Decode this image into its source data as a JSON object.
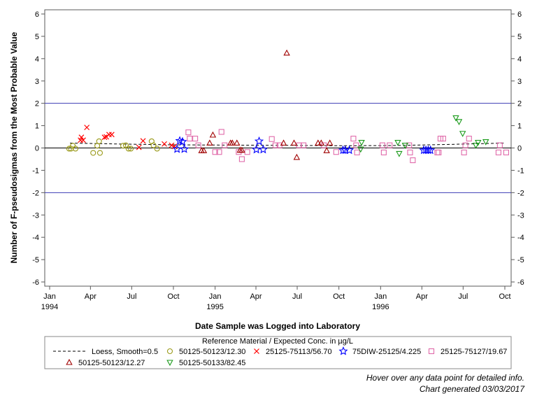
{
  "chart_data": {
    "type": "scatter",
    "title": "",
    "xlabel": "Date Sample was Logged into Laboratory",
    "ylabel": "Number of F-pseudosigmas from the Most Probable Value",
    "ylim": [
      -6,
      6
    ],
    "yticks": [
      -6,
      -5,
      -4,
      -3,
      -2,
      -1,
      0,
      1,
      2,
      3,
      4,
      5,
      6
    ],
    "xlim": [
      "1994-01-01",
      "1996-10-25"
    ],
    "xticks": [
      {
        "date": "1994-01-01",
        "label": "Jan",
        "year": "1994"
      },
      {
        "date": "1994-04-01",
        "label": "Apr",
        "year": ""
      },
      {
        "date": "1994-07-01",
        "label": "Jul",
        "year": ""
      },
      {
        "date": "1994-10-01",
        "label": "Oct",
        "year": ""
      },
      {
        "date": "1995-01-01",
        "label": "Jan",
        "year": "1995"
      },
      {
        "date": "1995-04-01",
        "label": "Apr",
        "year": ""
      },
      {
        "date": "1995-07-01",
        "label": "Jul",
        "year": ""
      },
      {
        "date": "1995-10-01",
        "label": "Oct",
        "year": ""
      },
      {
        "date": "1996-01-01",
        "label": "Jan",
        "year": "1996"
      },
      {
        "date": "1996-04-01",
        "label": "Apr",
        "year": ""
      },
      {
        "date": "1996-07-01",
        "label": "Jul",
        "year": ""
      },
      {
        "date": "1996-10-01",
        "label": "Oct",
        "year": ""
      }
    ],
    "reference_lines": [
      {
        "y": 2,
        "color": "#3b3bb5"
      },
      {
        "y": 0,
        "color": "#000000"
      },
      {
        "y": -2,
        "color": "#3b3bb5"
      }
    ],
    "grid": false,
    "legend_title": "Reference Material / Expected Conc. in µg/L",
    "legend_position": "bottom",
    "loess": {
      "label": "Loess, Smooth=0.5",
      "points": [
        {
          "x": "1994-02-15",
          "y": 0.22
        },
        {
          "x": "1994-06-01",
          "y": 0.18
        },
        {
          "x": "1994-10-01",
          "y": 0.14
        },
        {
          "x": "1995-02-01",
          "y": 0.13
        },
        {
          "x": "1995-06-01",
          "y": 0.12
        },
        {
          "x": "1995-10-01",
          "y": 0.1
        },
        {
          "x": "1996-02-01",
          "y": 0.11
        },
        {
          "x": "1996-06-01",
          "y": 0.16
        },
        {
          "x": "1996-10-01",
          "y": 0.22
        }
      ]
    },
    "series": [
      {
        "name": "50125-50123/12.30",
        "marker": "circle",
        "color": "#9a9a1a",
        "points": [
          {
            "x": "1994-02-13",
            "y": -0.03
          },
          {
            "x": "1994-02-17",
            "y": -0.03
          },
          {
            "x": "1994-02-21",
            "y": 0.1
          },
          {
            "x": "1994-02-27",
            "y": -0.03
          },
          {
            "x": "1994-04-07",
            "y": -0.22
          },
          {
            "x": "1994-04-16",
            "y": 0.1
          },
          {
            "x": "1994-04-20",
            "y": 0.3
          },
          {
            "x": "1994-04-22",
            "y": -0.22
          },
          {
            "x": "1994-06-12",
            "y": 0.1
          },
          {
            "x": "1994-06-18",
            "y": 0.12
          },
          {
            "x": "1994-06-24",
            "y": -0.03
          },
          {
            "x": "1994-06-29",
            "y": -0.03
          },
          {
            "x": "1994-08-14",
            "y": 0.3
          },
          {
            "x": "1994-08-18",
            "y": 0.12
          },
          {
            "x": "1994-08-26",
            "y": -0.03
          }
        ]
      },
      {
        "name": "25125-75113/56.70",
        "marker": "x",
        "color": "#ff0000",
        "points": [
          {
            "x": "1994-03-10",
            "y": 0.35
          },
          {
            "x": "1994-03-12",
            "y": 0.48
          },
          {
            "x": "1994-03-16",
            "y": 0.35
          },
          {
            "x": "1994-03-24",
            "y": 0.92
          },
          {
            "x": "1994-05-02",
            "y": 0.48
          },
          {
            "x": "1994-05-06",
            "y": 0.5
          },
          {
            "x": "1994-05-12",
            "y": 0.6
          },
          {
            "x": "1994-05-18",
            "y": 0.6
          },
          {
            "x": "1994-07-17",
            "y": 0.03
          },
          {
            "x": "1994-07-26",
            "y": 0.32
          },
          {
            "x": "1994-09-11",
            "y": 0.18
          },
          {
            "x": "1994-09-27",
            "y": 0.12
          },
          {
            "x": "1994-10-03",
            "y": 0.07
          }
        ]
      },
      {
        "name": "75DIW-25125/4.225",
        "marker": "star",
        "color": "#0000ff",
        "points": [
          {
            "x": "1994-10-09",
            "y": -0.05
          },
          {
            "x": "1994-10-15",
            "y": 0.32
          },
          {
            "x": "1994-10-21",
            "y": 0.28
          },
          {
            "x": "1994-10-25",
            "y": -0.05
          },
          {
            "x": "1995-04-02",
            "y": -0.07
          },
          {
            "x": "1995-04-08",
            "y": 0.3
          },
          {
            "x": "1995-04-17",
            "y": -0.07
          },
          {
            "x": "1995-10-10",
            "y": -0.1
          },
          {
            "x": "1995-10-15",
            "y": -0.1
          },
          {
            "x": "1995-10-24",
            "y": -0.1
          },
          {
            "x": "1996-04-05",
            "y": -0.1
          },
          {
            "x": "1996-04-10",
            "y": -0.1
          },
          {
            "x": "1996-04-15",
            "y": -0.1
          },
          {
            "x": "1996-04-20",
            "y": -0.1
          }
        ]
      },
      {
        "name": "25125-75127/19.67",
        "marker": "square",
        "color": "#e06aaa",
        "points": [
          {
            "x": "1994-11-03",
            "y": 0.7
          },
          {
            "x": "1994-11-06",
            "y": 0.42
          },
          {
            "x": "1994-11-18",
            "y": 0.42
          },
          {
            "x": "1994-11-25",
            "y": 0.12
          },
          {
            "x": "1995-01-01",
            "y": -0.18
          },
          {
            "x": "1995-01-10",
            "y": -0.18
          },
          {
            "x": "1995-01-15",
            "y": 0.72
          },
          {
            "x": "1995-01-22",
            "y": 0.12
          },
          {
            "x": "1995-02-22",
            "y": -0.18
          },
          {
            "x": "1995-03-01",
            "y": -0.5
          },
          {
            "x": "1995-03-13",
            "y": -0.18
          },
          {
            "x": "1995-05-06",
            "y": 0.4
          },
          {
            "x": "1995-05-14",
            "y": 0.12
          },
          {
            "x": "1995-05-23",
            "y": 0.12
          },
          {
            "x": "1995-07-05",
            "y": 0.12
          },
          {
            "x": "1995-07-15",
            "y": 0.12
          },
          {
            "x": "1995-08-29",
            "y": 0.12
          },
          {
            "x": "1995-09-25",
            "y": -0.18
          },
          {
            "x": "1995-11-02",
            "y": 0.42
          },
          {
            "x": "1995-11-08",
            "y": 0.12
          },
          {
            "x": "1995-11-10",
            "y": -0.2
          },
          {
            "x": "1996-01-05",
            "y": 0.12
          },
          {
            "x": "1996-01-08",
            "y": -0.2
          },
          {
            "x": "1996-01-21",
            "y": 0.12
          },
          {
            "x": "1996-03-04",
            "y": 0.12
          },
          {
            "x": "1996-03-06",
            "y": -0.2
          },
          {
            "x": "1996-03-12",
            "y": -0.55
          },
          {
            "x": "1996-05-05",
            "y": -0.2
          },
          {
            "x": "1996-05-08",
            "y": -0.2
          },
          {
            "x": "1996-05-12",
            "y": 0.42
          },
          {
            "x": "1996-05-18",
            "y": 0.42
          },
          {
            "x": "1996-07-03",
            "y": -0.2
          },
          {
            "x": "1996-07-06",
            "y": 0.12
          },
          {
            "x": "1996-07-14",
            "y": 0.42
          },
          {
            "x": "1996-09-17",
            "y": -0.2
          },
          {
            "x": "1996-09-20",
            "y": 0.12
          },
          {
            "x": "1996-10-04",
            "y": -0.2
          }
        ]
      },
      {
        "name": "50125-50123/12.27",
        "marker": "triangle",
        "color": "#a00000",
        "points": [
          {
            "x": "1994-12-02",
            "y": -0.12
          },
          {
            "x": "1994-12-07",
            "y": -0.12
          },
          {
            "x": "1994-12-20",
            "y": 0.22
          },
          {
            "x": "1994-12-27",
            "y": 0.58
          },
          {
            "x": "1995-02-04",
            "y": 0.22
          },
          {
            "x": "1995-02-08",
            "y": 0.22
          },
          {
            "x": "1995-02-18",
            "y": 0.22
          },
          {
            "x": "1995-02-25",
            "y": -0.1
          },
          {
            "x": "1995-03-01",
            "y": -0.1
          },
          {
            "x": "1995-06-08",
            "y": 4.25
          },
          {
            "x": "1995-06-01",
            "y": 0.22
          },
          {
            "x": "1995-06-24",
            "y": 0.22
          },
          {
            "x": "1995-06-30",
            "y": -0.42
          },
          {
            "x": "1995-08-16",
            "y": 0.22
          },
          {
            "x": "1995-08-23",
            "y": 0.22
          },
          {
            "x": "1995-09-04",
            "y": -0.12
          },
          {
            "x": "1995-09-11",
            "y": 0.22
          }
        ]
      },
      {
        "name": "50125-50133/82.45",
        "marker": "triangle-down",
        "color": "#1a9a1a",
        "points": [
          {
            "x": "1995-11-18",
            "y": -0.05
          },
          {
            "x": "1995-11-20",
            "y": 0.25
          },
          {
            "x": "1996-02-08",
            "y": 0.25
          },
          {
            "x": "1996-02-11",
            "y": -0.25
          },
          {
            "x": "1996-02-24",
            "y": 0.12
          },
          {
            "x": "1996-06-15",
            "y": 1.35
          },
          {
            "x": "1996-06-22",
            "y": 1.18
          },
          {
            "x": "1996-06-30",
            "y": 0.65
          },
          {
            "x": "1996-07-29",
            "y": 0.12
          },
          {
            "x": "1996-08-03",
            "y": 0.25
          },
          {
            "x": "1996-08-20",
            "y": 0.28
          }
        ]
      }
    ]
  },
  "footer": {
    "line1": "Hover over any data point for detailed info.",
    "line2": "Chart generated 03/03/2017"
  }
}
